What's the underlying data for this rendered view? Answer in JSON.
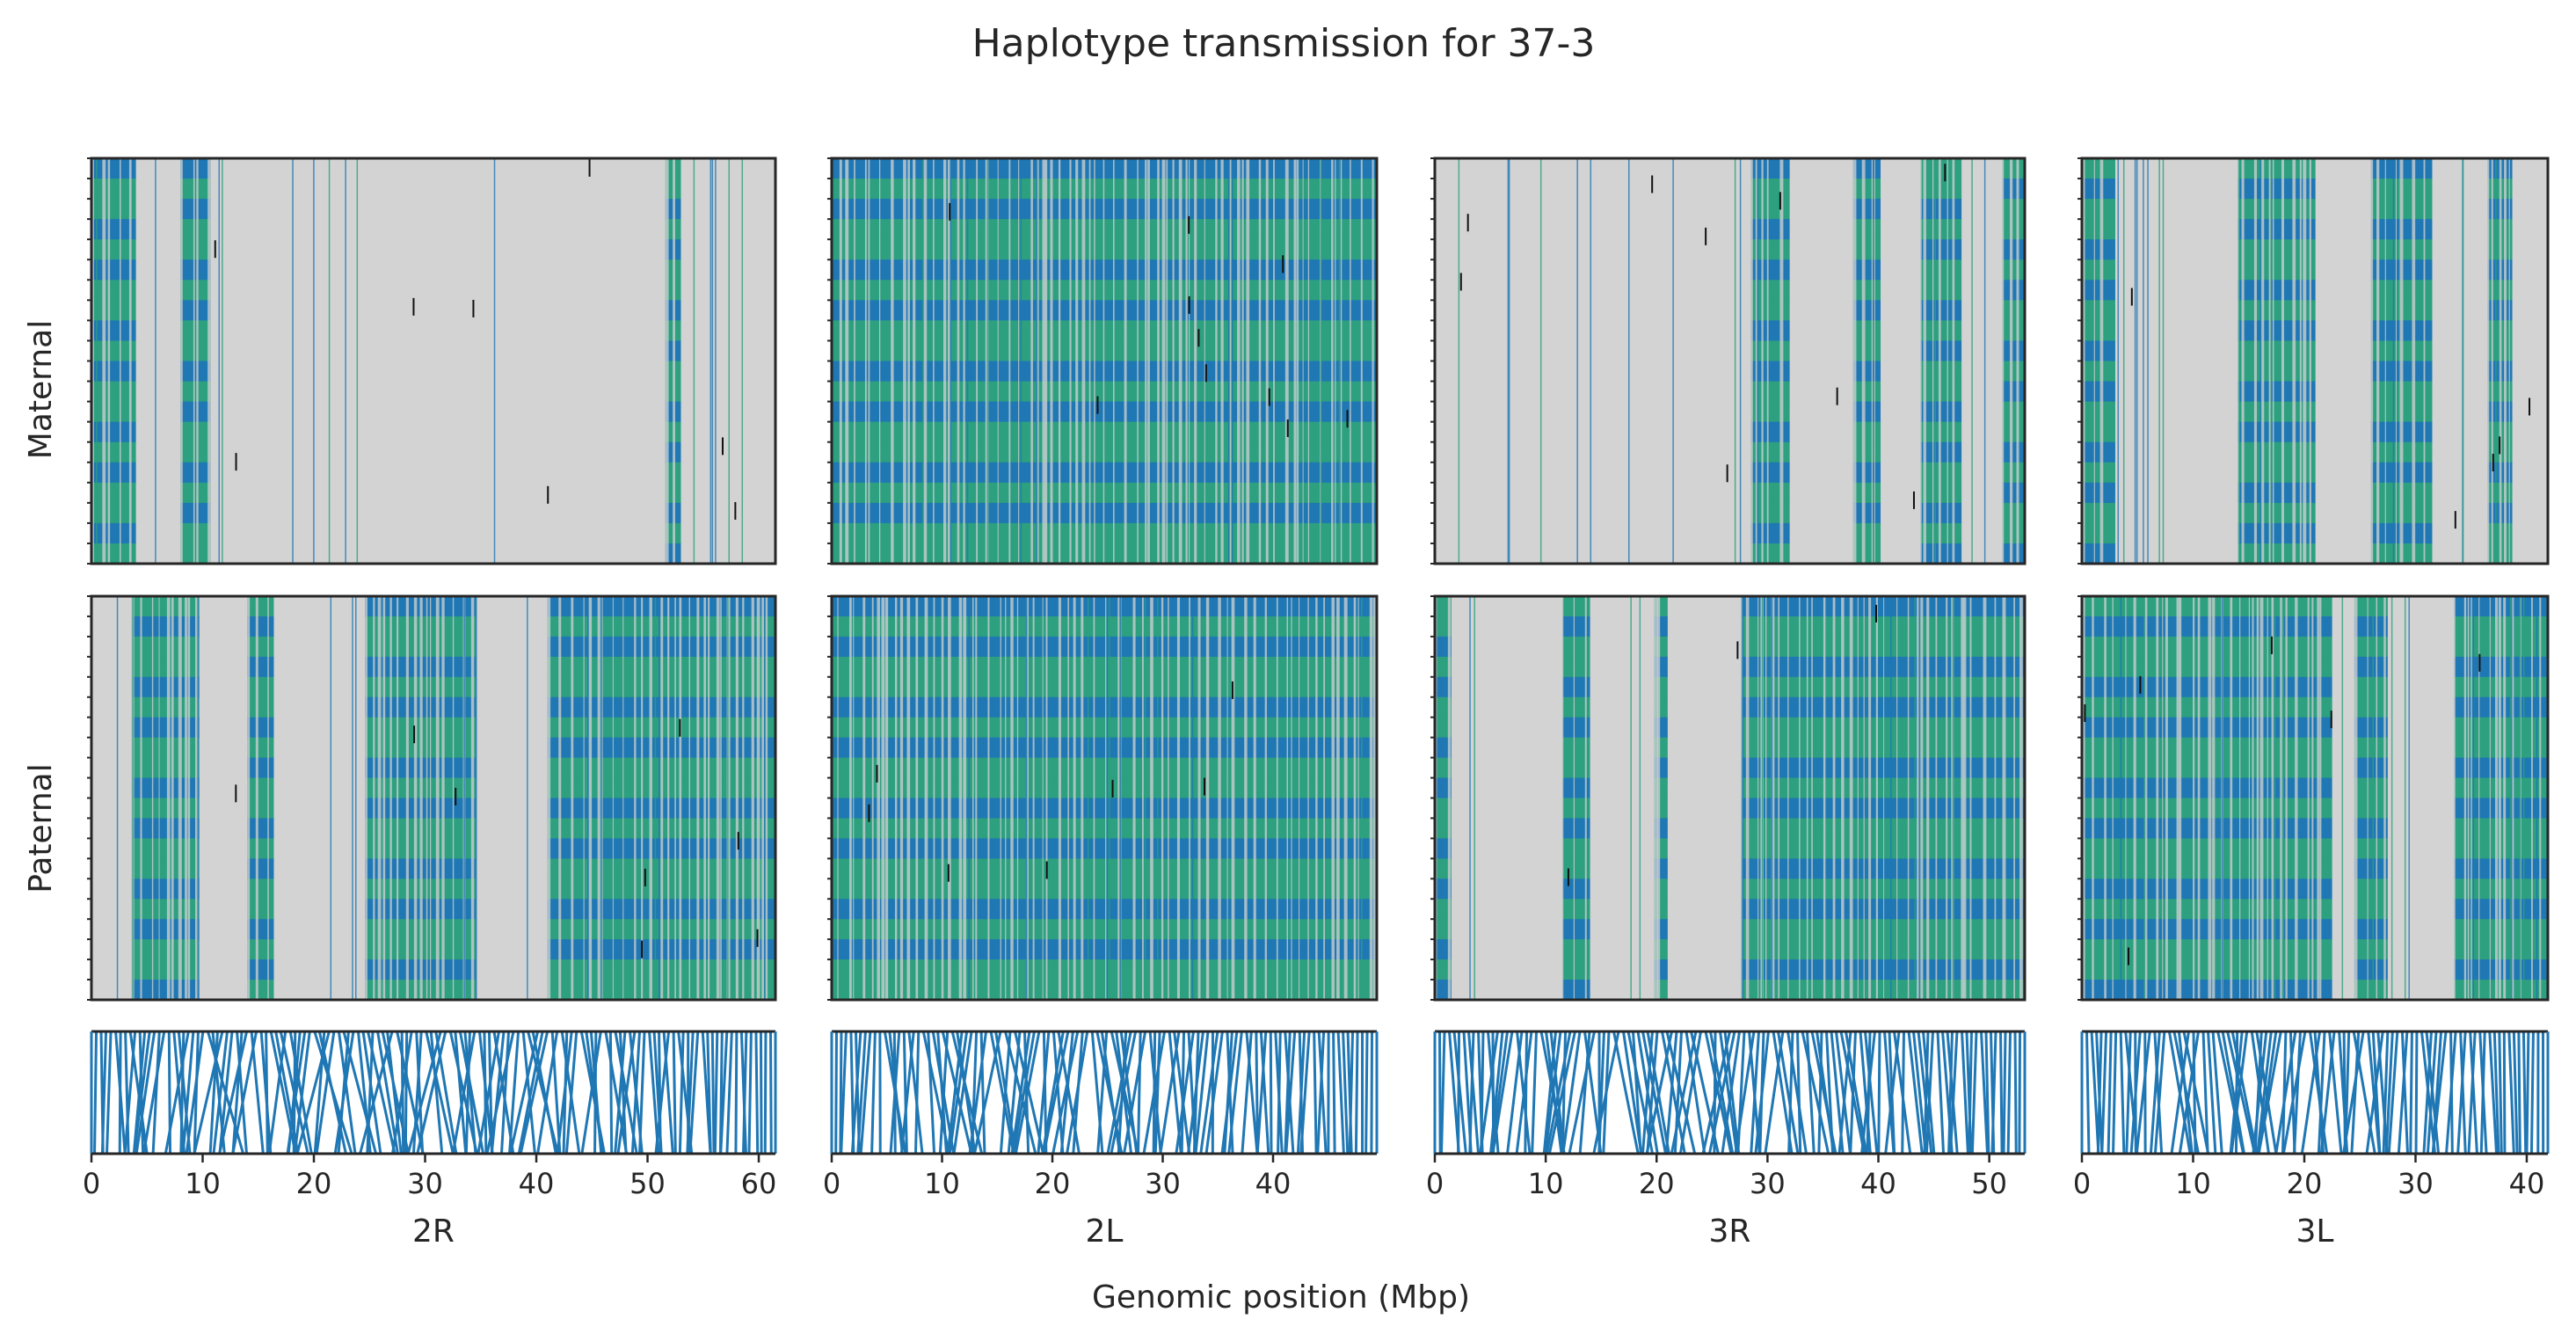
{
  "chart_data": {
    "type": "heatmap",
    "title": "Haplotype transmission for 37-3",
    "xlabel": "Genomic position (Mbp)",
    "row_labels": [
      "Maternal",
      "Paternal"
    ],
    "chromosomes": [
      {
        "name": "2R",
        "xlim": [
          0,
          61.5
        ],
        "xticks": [
          0,
          10,
          20,
          30,
          40,
          50,
          60
        ],
        "maternal_segments": [
          {
            "start": 0.0,
            "end": 4.0,
            "state": "informative"
          },
          {
            "start": 4.0,
            "end": 8.0,
            "state": "uninformative"
          },
          {
            "start": 8.0,
            "end": 10.7,
            "state": "informative"
          },
          {
            "start": 10.7,
            "end": 51.6,
            "state": "uninformative"
          },
          {
            "start": 51.6,
            "end": 53.0,
            "state": "informative"
          },
          {
            "start": 53.0,
            "end": 61.5,
            "state": "uninformative"
          }
        ],
        "paternal_segments": [
          {
            "start": 0.0,
            "end": 3.6,
            "state": "uninformative"
          },
          {
            "start": 3.6,
            "end": 9.7,
            "state": "informative"
          },
          {
            "start": 9.7,
            "end": 14.0,
            "state": "uninformative"
          },
          {
            "start": 14.0,
            "end": 16.4,
            "state": "informative"
          },
          {
            "start": 16.4,
            "end": 24.6,
            "state": "uninformative"
          },
          {
            "start": 24.6,
            "end": 34.6,
            "state": "informative"
          },
          {
            "start": 34.6,
            "end": 41.0,
            "state": "uninformative"
          },
          {
            "start": 41.0,
            "end": 61.5,
            "state": "informative"
          }
        ]
      },
      {
        "name": "2L",
        "xlim": [
          0,
          49.4
        ],
        "xticks": [
          0,
          10,
          20,
          30,
          40
        ],
        "maternal_segments": [
          {
            "start": 0.0,
            "end": 49.4,
            "state": "informative"
          }
        ],
        "paternal_segments": [
          {
            "start": 0.0,
            "end": 49.4,
            "state": "informative"
          }
        ]
      },
      {
        "name": "3R",
        "xlim": [
          0,
          53.2
        ],
        "xticks": [
          0,
          10,
          20,
          30,
          40,
          50
        ],
        "maternal_segments": [
          {
            "start": 0.0,
            "end": 28.5,
            "state": "uninformative"
          },
          {
            "start": 28.5,
            "end": 32.0,
            "state": "informative"
          },
          {
            "start": 32.0,
            "end": 37.7,
            "state": "uninformative"
          },
          {
            "start": 37.7,
            "end": 40.2,
            "state": "informative"
          },
          {
            "start": 40.2,
            "end": 43.8,
            "state": "uninformative"
          },
          {
            "start": 43.8,
            "end": 47.5,
            "state": "informative"
          },
          {
            "start": 47.5,
            "end": 51.2,
            "state": "uninformative"
          },
          {
            "start": 51.2,
            "end": 53.2,
            "state": "informative"
          }
        ],
        "paternal_segments": [
          {
            "start": 0.0,
            "end": 1.5,
            "state": "informative"
          },
          {
            "start": 1.5,
            "end": 11.5,
            "state": "uninformative"
          },
          {
            "start": 11.5,
            "end": 14.0,
            "state": "informative"
          },
          {
            "start": 14.0,
            "end": 19.8,
            "state": "uninformative"
          },
          {
            "start": 19.8,
            "end": 21.0,
            "state": "informative"
          },
          {
            "start": 21.0,
            "end": 27.6,
            "state": "uninformative"
          },
          {
            "start": 27.6,
            "end": 53.2,
            "state": "informative"
          }
        ]
      },
      {
        "name": "3L",
        "xlim": [
          0,
          41.9
        ],
        "xticks": [
          0,
          10,
          20,
          30,
          40
        ],
        "maternal_segments": [
          {
            "start": 0.0,
            "end": 3.0,
            "state": "informative"
          },
          {
            "start": 3.0,
            "end": 14.0,
            "state": "uninformative"
          },
          {
            "start": 14.0,
            "end": 21.0,
            "state": "informative"
          },
          {
            "start": 21.0,
            "end": 26.0,
            "state": "uninformative"
          },
          {
            "start": 26.0,
            "end": 31.5,
            "state": "informative"
          },
          {
            "start": 31.5,
            "end": 36.5,
            "state": "uninformative"
          },
          {
            "start": 36.5,
            "end": 38.7,
            "state": "informative"
          },
          {
            "start": 38.7,
            "end": 41.9,
            "state": "uninformative"
          }
        ],
        "paternal_segments": [
          {
            "start": 0.0,
            "end": 22.5,
            "state": "informative"
          },
          {
            "start": 22.5,
            "end": 24.5,
            "state": "uninformative"
          },
          {
            "start": 24.5,
            "end": 27.5,
            "state": "informative"
          },
          {
            "start": 27.5,
            "end": 33.5,
            "state": "uninformative"
          },
          {
            "start": 33.5,
            "end": 41.9,
            "state": "informative"
          }
        ]
      }
    ],
    "colors": {
      "haplotype_1": "#1f77b4",
      "haplotype_2": "#2ca07f",
      "uninformative": "#d3d3d3",
      "switch_error": "#111111",
      "variant_lines": "#1f77b4",
      "axes": "#262626"
    }
  }
}
